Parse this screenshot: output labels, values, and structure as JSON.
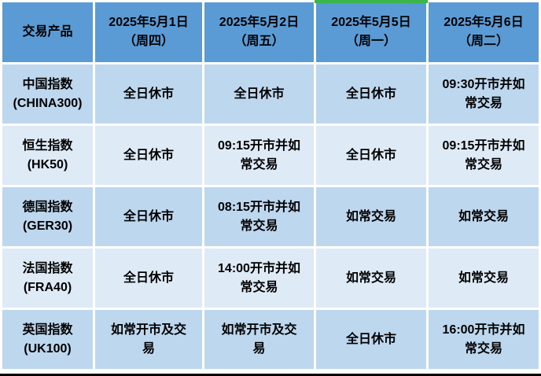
{
  "colors": {
    "header-bg": "#5b9bd5",
    "row-dark": "#bdd7ee",
    "row-light": "#deebf7",
    "highlight-green": "#3cb54a",
    "bottom-border": "#000000",
    "grid-white": "#ffffff",
    "text": "#000000"
  },
  "table": {
    "header": {
      "product_col": "交易产品",
      "dates": [
        {
          "date": "2025年5月1日",
          "weekday": "（周四）"
        },
        {
          "date": "2025年5月2日",
          "weekday": "（周五）"
        },
        {
          "date": "2025年5月5日",
          "weekday": "（周一）"
        },
        {
          "date": "2025年5月6日",
          "weekday": "（周二）"
        }
      ],
      "highlighted_date_index": 2
    },
    "rows": [
      {
        "product": "中国指数",
        "code": "(CHINA300)",
        "cells": [
          "全日休市",
          "全日休市",
          "全日休市",
          "09:30开市并如常交易"
        ]
      },
      {
        "product": "恒生指数",
        "code": "(HK50)",
        "cells": [
          "全日休市",
          "09:15开市并如常交易",
          "全日休市",
          "09:15开市并如常交易"
        ]
      },
      {
        "product": "德国指数",
        "code": "(GER30)",
        "cells": [
          "全日休市",
          "08:15开市并如常交易",
          "如常交易",
          "如常交易"
        ]
      },
      {
        "product": "法国指数",
        "code": "(FRA40)",
        "cells": [
          "全日休市",
          "14:00开市并如常交易",
          "如常交易",
          "如常交易"
        ]
      },
      {
        "product": "英国指数",
        "code": "(UK100)",
        "cells": [
          "如常开市及交易",
          "如常开市及交易",
          "全日休市",
          "16:00开市并如常交易"
        ]
      }
    ]
  }
}
